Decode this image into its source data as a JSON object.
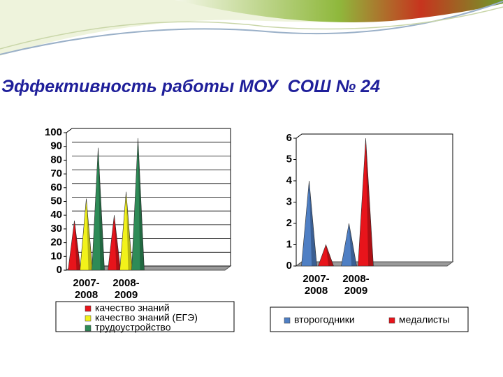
{
  "slide_title": "Эффективность работы МОУ  СОШ № 24",
  "chart_data": [
    {
      "type": "cone",
      "categories": [
        "2007-2008",
        "2008-2009"
      ],
      "series": [
        {
          "name": "качество знаний",
          "color": "#e8141b",
          "values": [
            36,
            40
          ]
        },
        {
          "name": "качество знаний (ЕГЭ)",
          "color": "#f2f21a",
          "values": [
            52,
            57
          ]
        },
        {
          "name": "трудоустройство",
          "color": "#2e8b57",
          "values": [
            89,
            96
          ]
        }
      ],
      "ylim": [
        0,
        100
      ],
      "yticks": [
        0,
        10,
        20,
        30,
        40,
        50,
        60,
        70,
        80,
        90,
        100
      ],
      "grid": true,
      "legend": "bottom"
    },
    {
      "type": "cone",
      "categories": [
        "2007-2008",
        "2008-2009"
      ],
      "series": [
        {
          "name": "второгодники",
          "color": "#4f7fc4",
          "values": [
            4,
            2
          ]
        },
        {
          "name": "медалисты",
          "color": "#e8141b",
          "values": [
            1,
            6
          ]
        }
      ],
      "ylim": [
        0,
        6
      ],
      "yticks": [
        0,
        1,
        2,
        3,
        4,
        5,
        6
      ],
      "grid": false,
      "legend": "bottom"
    }
  ]
}
